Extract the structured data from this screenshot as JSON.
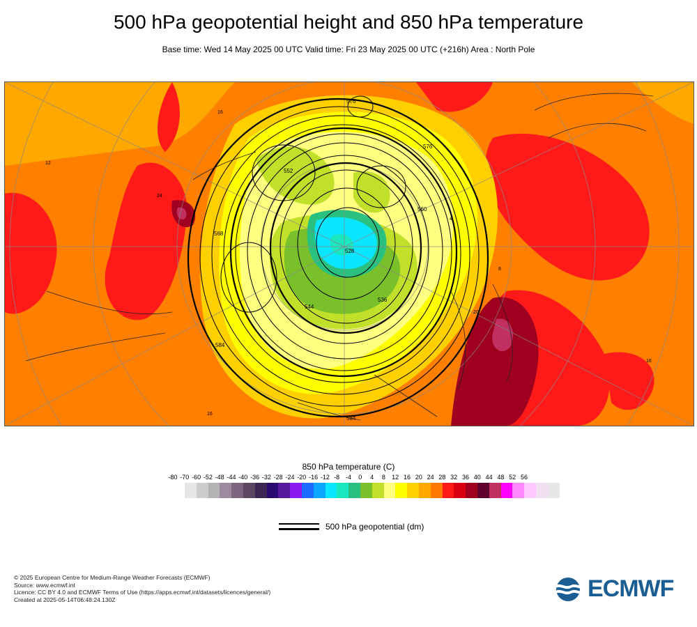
{
  "header": {
    "title": "500 hPa geopotential height and 850 hPa temperature",
    "subtitle": "Base time: Wed 14 May 2025 00 UTC Valid time: Fri 23 May 2025 00 UTC (+216h) Area : North Pole"
  },
  "map": {
    "contour_labels": [
      "584",
      "576",
      "568",
      "560",
      "552",
      "544",
      "536",
      "528",
      "576",
      "584"
    ],
    "temperature_labels": [
      "16",
      "16",
      "12",
      "24",
      "8",
      "4",
      "20",
      "16"
    ]
  },
  "legend": {
    "title": "850 hPa temperature (C)",
    "ticks": [
      "-80",
      "-70",
      "-60",
      "-52",
      "-48",
      "-44",
      "-40",
      "-36",
      "-32",
      "-28",
      "-24",
      "-20",
      "-16",
      "-12",
      "-8",
      "-4",
      "0",
      "4",
      "8",
      "12",
      "16",
      "20",
      "24",
      "28",
      "32",
      "36",
      "40",
      "44",
      "48",
      "52",
      "56"
    ],
    "colors": [
      "#e6e6e6",
      "#cccccc",
      "#b3b3b3",
      "#9e8a9e",
      "#7e6680",
      "#5c4660",
      "#3a2650",
      "#2a0a70",
      "#5a1aa0",
      "#8a1af0",
      "#1a6aff",
      "#0aa6ff",
      "#0ae6ff",
      "#1ae6c0",
      "#2ac080",
      "#7ac02a",
      "#c0e02a",
      "#ffff80",
      "#ffff00",
      "#ffd000",
      "#ffa800",
      "#ff7800",
      "#ff1a1a",
      "#d80010",
      "#a00020",
      "#600030",
      "#c03060",
      "#ff00ff",
      "#ff88ff",
      "#ffc8ff",
      "#f0e0f0",
      "#e6e6e6"
    ]
  },
  "contour_legend": {
    "label": "500 hPa geopotential (dm)"
  },
  "footer": {
    "line1": "© 2025 European Centre for Medium-Range Weather Forecasts (ECMWF)",
    "line2": "Source: www.ecmwf.int",
    "line3": "Licence: CC BY 4.0 and ECMWF Terms of Use (https://apps.ecmwf.int/datasets/licences/general/)",
    "line4": "Created at 2025-05-14T06:48:24.130Z"
  },
  "logo": {
    "text": "ECMWF",
    "color": "#1b5e93"
  }
}
